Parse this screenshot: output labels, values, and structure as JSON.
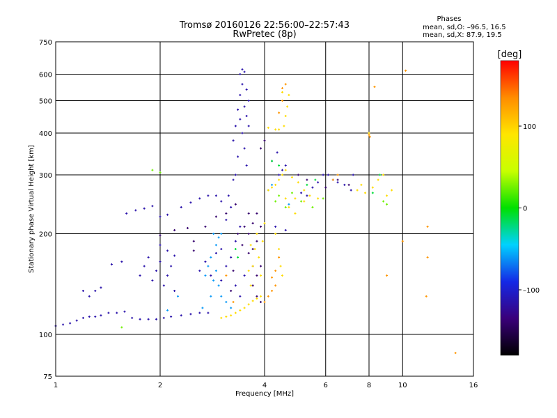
{
  "chart_data": {
    "type": "scatter",
    "title": "Tromsø 20160126 22:56:00–22:57:43",
    "subtitle": "RwPretec (8p)",
    "xlabel": "Frequency [MHz]",
    "ylabel": "Stationary phase Virtual Height [km]",
    "x_scale": "log",
    "y_scale": "log",
    "xlim": [
      1,
      16
    ],
    "ylim": [
      75,
      750
    ],
    "x_ticks": [
      1,
      2,
      4,
      6,
      8,
      10,
      16
    ],
    "x_tick_labels": [
      "1",
      "2",
      "4",
      "6",
      "8",
      "10",
      "16"
    ],
    "x_gridlines": [
      2,
      4,
      6,
      8,
      10
    ],
    "y_ticks": [
      75,
      100,
      200,
      300,
      400,
      500,
      600,
      750
    ],
    "y_tick_labels": [
      "75",
      "100",
      "200",
      "300",
      "400",
      "500",
      "600",
      "750"
    ],
    "y_gridlines": [
      100,
      200,
      300,
      400,
      500,
      600
    ],
    "grid": true,
    "info": {
      "heading": "Phases",
      "line1": "mean, sd,O: –96.5, 16.5",
      "line2": "mean, sd,X:  87.9, 19.5"
    },
    "colorbar": {
      "label": "[deg]",
      "min": -180,
      "max": 180,
      "ticks": [
        100,
        0,
        -100
      ],
      "tick_labels": [
        "100",
        "0",
        "–100"
      ],
      "stops": [
        "#000000",
        "#3a007a",
        "#1428e6",
        "#00d2ff",
        "#00e000",
        "#c8ff00",
        "#ffe600",
        "#ff8c00",
        "#ff0000"
      ]
    },
    "series": [
      {
        "color_value": -115,
        "points": [
          [
            1.0,
            106
          ],
          [
            1.05,
            107
          ],
          [
            1.1,
            108
          ],
          [
            1.15,
            110
          ],
          [
            1.2,
            112
          ],
          [
            1.25,
            113
          ],
          [
            1.3,
            113
          ],
          [
            1.35,
            114
          ],
          [
            1.42,
            116
          ],
          [
            1.5,
            116
          ],
          [
            1.58,
            117
          ],
          [
            1.66,
            112
          ],
          [
            1.75,
            111
          ],
          [
            1.85,
            111
          ],
          [
            1.95,
            111
          ],
          [
            2.05,
            112
          ],
          [
            2.15,
            113
          ],
          [
            2.3,
            114
          ],
          [
            2.45,
            115
          ],
          [
            2.6,
            116
          ],
          [
            2.75,
            116
          ],
          [
            1.3,
            135
          ],
          [
            1.35,
            138
          ],
          [
            1.45,
            162
          ],
          [
            1.55,
            165
          ],
          [
            1.6,
            230
          ],
          [
            1.7,
            235
          ],
          [
            1.8,
            238
          ],
          [
            1.9,
            242
          ],
          [
            2.0,
            225
          ],
          [
            2.1,
            228
          ],
          [
            2.3,
            240
          ],
          [
            2.45,
            248
          ],
          [
            2.6,
            255
          ],
          [
            2.75,
            260
          ],
          [
            1.75,
            150
          ],
          [
            1.8,
            160
          ],
          [
            1.85,
            170
          ],
          [
            1.9,
            145
          ],
          [
            1.95,
            155
          ],
          [
            2.0,
            165
          ],
          [
            2.05,
            140
          ],
          [
            2.1,
            150
          ],
          [
            2.15,
            160
          ],
          [
            2.2,
            135
          ],
          [
            2.0,
            185
          ],
          [
            2.1,
            178
          ],
          [
            2.2,
            172
          ],
          [
            2.6,
            155
          ],
          [
            2.7,
            165
          ],
          [
            2.8,
            150
          ],
          [
            2.9,
            175
          ],
          [
            3.0,
            180
          ],
          [
            3.0,
            145
          ],
          [
            3.1,
            160
          ],
          [
            3.2,
            170
          ],
          [
            3.3,
            190
          ],
          [
            3.4,
            210
          ],
          [
            3.3,
            140
          ],
          [
            3.4,
            130
          ],
          [
            3.5,
            150
          ],
          [
            3.1,
            220
          ],
          [
            3.2,
            240
          ],
          [
            3.0,
            250
          ],
          [
            2.9,
            260
          ],
          [
            3.25,
            380
          ],
          [
            3.3,
            420
          ],
          [
            3.35,
            470
          ],
          [
            3.4,
            520
          ],
          [
            3.45,
            560
          ],
          [
            3.5,
            610
          ],
          [
            3.35,
            340
          ],
          [
            3.3,
            300
          ],
          [
            3.4,
            440
          ],
          [
            3.5,
            480
          ],
          [
            3.45,
            400
          ],
          [
            3.5,
            360
          ],
          [
            3.55,
            450
          ],
          [
            3.55,
            540
          ],
          [
            3.4,
            600
          ],
          [
            3.45,
            620
          ],
          [
            3.6,
            500
          ],
          [
            3.6,
            420
          ],
          [
            3.55,
            320
          ],
          [
            3.15,
            260
          ],
          [
            3.25,
            290
          ],
          [
            4.2,
            330
          ],
          [
            4.35,
            350
          ],
          [
            4.4,
            300
          ],
          [
            4.5,
            310
          ],
          [
            4.6,
            320
          ],
          [
            4.3,
            210
          ],
          [
            4.6,
            205
          ],
          [
            5.1,
            265
          ],
          [
            5.3,
            260
          ],
          [
            5.5,
            275
          ],
          [
            5.7,
            285
          ],
          [
            5.9,
            300
          ],
          [
            6.1,
            300
          ],
          [
            6.3,
            290
          ],
          [
            6.5,
            285
          ],
          [
            6.8,
            280
          ],
          [
            7.1,
            270
          ],
          [
            7.2,
            300
          ],
          [
            1.2,
            135
          ],
          [
            1.25,
            130
          ]
        ]
      },
      {
        "color_value": -140,
        "points": [
          [
            2.5,
            190
          ],
          [
            2.7,
            210
          ],
          [
            2.9,
            225
          ],
          [
            3.1,
            230
          ],
          [
            3.3,
            245
          ],
          [
            3.6,
            230
          ],
          [
            3.7,
            215
          ],
          [
            3.8,
            230
          ],
          [
            3.6,
            200
          ],
          [
            3.7,
            180
          ],
          [
            3.8,
            190
          ],
          [
            3.9,
            210
          ],
          [
            3.7,
            160
          ],
          [
            3.8,
            150
          ],
          [
            3.9,
            160
          ],
          [
            3.7,
            140
          ],
          [
            3.8,
            130
          ],
          [
            3.9,
            125
          ],
          [
            3.2,
            135
          ],
          [
            3.6,
            175
          ],
          [
            2.4,
            208
          ],
          [
            2.5,
            178
          ],
          [
            2.2,
            205
          ],
          [
            2.0,
            198
          ],
          [
            5.0,
            300
          ],
          [
            5.3,
            290
          ],
          [
            6.0,
            275
          ],
          [
            6.5,
            290
          ],
          [
            4.0,
            380
          ],
          [
            3.9,
            360
          ],
          [
            7.0,
            280
          ],
          [
            3.35,
            200
          ],
          [
            3.5,
            210
          ],
          [
            3.45,
            185
          ],
          [
            3.25,
            155
          ]
        ]
      },
      {
        "color_value": -60,
        "points": [
          [
            2.7,
            150
          ],
          [
            2.75,
            160
          ],
          [
            2.8,
            170
          ],
          [
            2.85,
            145
          ],
          [
            2.9,
            155
          ],
          [
            2.95,
            140
          ],
          [
            3.0,
            130
          ],
          [
            3.1,
            125
          ],
          [
            3.2,
            120
          ],
          [
            2.8,
            130
          ],
          [
            2.65,
            120
          ],
          [
            2.9,
            185
          ],
          [
            2.95,
            195
          ],
          [
            2.85,
            200
          ],
          [
            3.0,
            200
          ],
          [
            4.1,
            270
          ],
          [
            4.2,
            280
          ],
          [
            4.7,
            245
          ],
          [
            2.25,
            130
          ],
          [
            2.1,
            118
          ]
        ]
      },
      {
        "color_value": 95,
        "points": [
          [
            3.0,
            112
          ],
          [
            3.1,
            113
          ],
          [
            3.2,
            114
          ],
          [
            3.3,
            116
          ],
          [
            3.4,
            118
          ],
          [
            3.5,
            120
          ],
          [
            3.6,
            123
          ],
          [
            3.7,
            126
          ],
          [
            3.8,
            128
          ],
          [
            3.9,
            130
          ],
          [
            3.65,
            140
          ],
          [
            3.7,
            160
          ],
          [
            3.75,
            180
          ],
          [
            3.8,
            200
          ],
          [
            3.6,
            155
          ],
          [
            3.65,
            185
          ],
          [
            3.85,
            170
          ],
          [
            3.9,
            150
          ],
          [
            3.95,
            190
          ],
          [
            4.0,
            215
          ],
          [
            4.3,
            200
          ],
          [
            4.4,
            180
          ],
          [
            4.45,
            160
          ],
          [
            4.5,
            150
          ],
          [
            4.1,
            270
          ],
          [
            4.2,
            275
          ],
          [
            4.3,
            280
          ],
          [
            4.4,
            290
          ],
          [
            4.5,
            300
          ],
          [
            4.6,
            310
          ],
          [
            4.8,
            295
          ],
          [
            5.0,
            285
          ],
          [
            5.2,
            270
          ],
          [
            5.4,
            260
          ],
          [
            4.6,
            255
          ],
          [
            4.9,
            255
          ],
          [
            5.2,
            250
          ],
          [
            5.7,
            255
          ],
          [
            4.7,
            240
          ],
          [
            4.9,
            230
          ],
          [
            7.4,
            270
          ],
          [
            7.6,
            280
          ],
          [
            7.8,
            265
          ],
          [
            8.2,
            275
          ],
          [
            8.5,
            290
          ],
          [
            8.8,
            300
          ],
          [
            9.0,
            260
          ],
          [
            9.3,
            270
          ],
          [
            4.55,
            420
          ],
          [
            4.6,
            450
          ],
          [
            4.65,
            480
          ],
          [
            4.7,
            520
          ],
          [
            4.5,
            530
          ],
          [
            4.4,
            410
          ],
          [
            4.3,
            410
          ],
          [
            4.1,
            415
          ],
          [
            8.0,
            400
          ]
        ]
      },
      {
        "color_value": 130,
        "points": [
          [
            4.0,
            125
          ],
          [
            4.1,
            130
          ],
          [
            4.2,
            135
          ],
          [
            4.3,
            140
          ],
          [
            4.2,
            148
          ],
          [
            4.3,
            155
          ],
          [
            4.4,
            170
          ],
          [
            4.5,
            545
          ],
          [
            4.6,
            560
          ],
          [
            4.4,
            460
          ],
          [
            4.5,
            500
          ],
          [
            6.3,
            290
          ],
          [
            6.5,
            300
          ],
          [
            8.0,
            395
          ],
          [
            8.05,
            390
          ],
          [
            11.8,
            170
          ],
          [
            11.7,
            130
          ],
          [
            11.8,
            210
          ],
          [
            10.0,
            190
          ],
          [
            9.0,
            150
          ],
          [
            8.3,
            550
          ],
          [
            10.2,
            615
          ],
          [
            3.1,
            150
          ],
          [
            3.25,
            125
          ],
          [
            14.2,
            88
          ]
        ]
      },
      {
        "color_value": 25,
        "points": [
          [
            4.3,
            250
          ],
          [
            4.4,
            260
          ],
          [
            4.6,
            240
          ],
          [
            4.8,
            265
          ],
          [
            5.1,
            250
          ],
          [
            5.5,
            240
          ],
          [
            5.9,
            255
          ],
          [
            8.8,
            250
          ],
          [
            9.0,
            245
          ],
          [
            1.9,
            310
          ],
          [
            2.0,
            305
          ],
          [
            1.55,
            105
          ]
        ]
      },
      {
        "color_value": -10,
        "points": [
          [
            4.2,
            330
          ],
          [
            4.4,
            320
          ],
          [
            5.3,
            280
          ],
          [
            5.6,
            290
          ],
          [
            8.6,
            300
          ],
          [
            8.2,
            265
          ],
          [
            3.3,
            180
          ],
          [
            3.35,
            170
          ]
        ]
      }
    ]
  }
}
